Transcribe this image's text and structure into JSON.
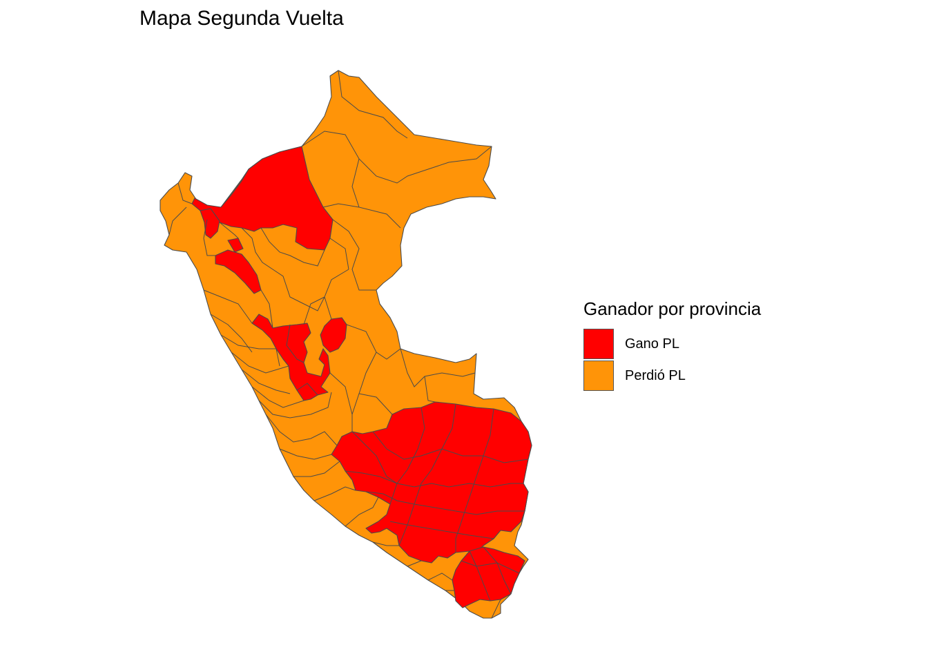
{
  "title": "Mapa Segunda Vuelta",
  "legend": {
    "title": "Ganador por provincia",
    "items": [
      {
        "label": "Gano PL",
        "color": "#FF0000"
      },
      {
        "label": "Perdió PL",
        "color": "#FF9408"
      }
    ]
  },
  "colors": {
    "border": "#4a4a4a",
    "background": "#ffffff"
  }
}
